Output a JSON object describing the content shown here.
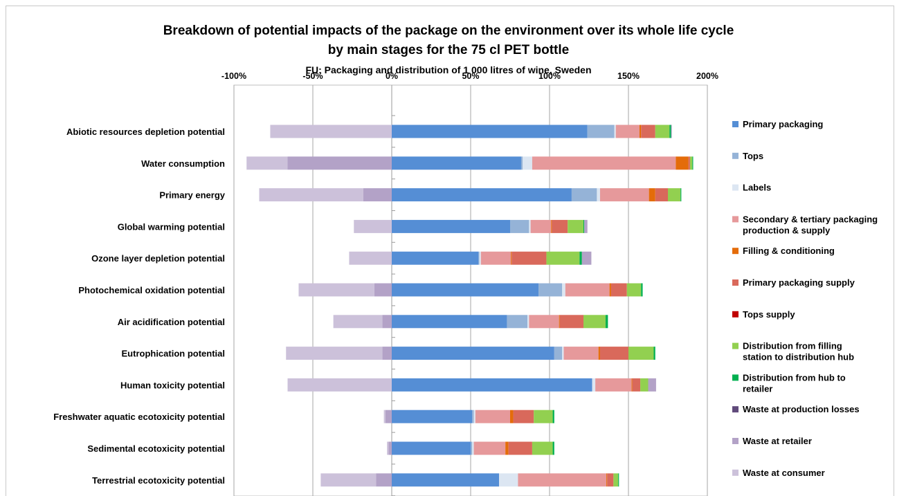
{
  "chart_data": {
    "type": "bar",
    "orientation": "horizontal",
    "stacked": true,
    "title": "Breakdown of potential impacts of the package on the environment over its whole life cycle",
    "subtitle": "by main stages for the 75 cl PET bottle",
    "subtitle2": "FU: Packaging and distribution of 1 000 litres of wine, Sweden",
    "xlim": [
      -100,
      200
    ],
    "xticks": [
      "-100%",
      "-50%",
      "0%",
      "50%",
      "100%",
      "150%",
      "200%"
    ],
    "grid": true,
    "legend_position": "right",
    "categories": [
      "Abiotic resources depletion potential",
      "Water consumption",
      "Primary energy",
      "Global warming potential",
      "Ozone layer depletion potential",
      "Photochemical oxidation potential",
      "Air acidification potential",
      "Eutrophication potential",
      "Human toxicity potential",
      "Freshwater aquatic ecotoxicity potential",
      "Sedimental ecotoxicity potential",
      "Terrestrial ecotoxicity potential"
    ],
    "series": [
      {
        "name": "Primary packaging",
        "color": "#558ed5",
        "values": [
          124,
          82,
          114,
          75,
          55,
          93,
          73,
          103,
          127,
          51,
          50,
          68
        ]
      },
      {
        "name": "Tops",
        "color": "#95b3d7",
        "values": [
          17,
          1,
          16,
          12,
          0.5,
          15,
          13,
          5,
          0,
          1,
          1,
          0
        ]
      },
      {
        "name": "Labels",
        "color": "#dce6f2",
        "values": [
          1,
          6,
          2,
          1,
          1,
          2,
          1,
          1,
          2,
          1,
          1,
          12
        ]
      },
      {
        "name": "Secondary & tertiary packaging production & supply",
        "color": "#e6999b",
        "values": [
          15,
          91,
          31,
          13,
          19,
          28,
          19,
          22,
          23,
          22,
          20,
          56
        ]
      },
      {
        "name": "Filling & conditioning",
        "color": "#e46c0a",
        "values": [
          1,
          8,
          4,
          0.5,
          0.5,
          1,
          0.5,
          1,
          0.5,
          2,
          2,
          0.5
        ]
      },
      {
        "name": "Primary packaging supply",
        "color": "#d9695b",
        "values": [
          9,
          1,
          8,
          10,
          22,
          10,
          15,
          18,
          5,
          13,
          15,
          4
        ]
      },
      {
        "name": "Tops supply",
        "color": "#c00000",
        "values": [
          0,
          0,
          0,
          0,
          0,
          0,
          0,
          0,
          0,
          0,
          0,
          0
        ]
      },
      {
        "name": "Distribution from filling station to distribution hub",
        "color": "#92d050",
        "values": [
          9,
          1.5,
          8,
          10,
          21,
          9,
          14,
          16,
          5,
          12,
          13,
          3
        ]
      },
      {
        "name": "Distribution from hub to retailer",
        "color": "#00b050",
        "values": [
          1,
          0.5,
          0.5,
          0.5,
          1.5,
          1,
          1.5,
          1,
          0,
          1,
          1,
          0.5
        ]
      },
      {
        "name": "Waste at production losses",
        "color": "#604a7b",
        "values": [
          0,
          0,
          0,
          0,
          0,
          0,
          0,
          0,
          0,
          0,
          0,
          0
        ]
      },
      {
        "name": "Waste at retailer",
        "color": "#b3a2c7",
        "values": [
          0.5,
          -66,
          -18,
          2,
          6,
          -11,
          -6,
          -6,
          5,
          -4,
          -2,
          -10
        ]
      },
      {
        "name": "Waste at consumer",
        "color": "#ccc1da",
        "values": [
          -77,
          -26,
          -66,
          -24,
          -27,
          -48,
          -31,
          -61,
          -66,
          -1,
          -1,
          -35
        ]
      }
    ]
  }
}
